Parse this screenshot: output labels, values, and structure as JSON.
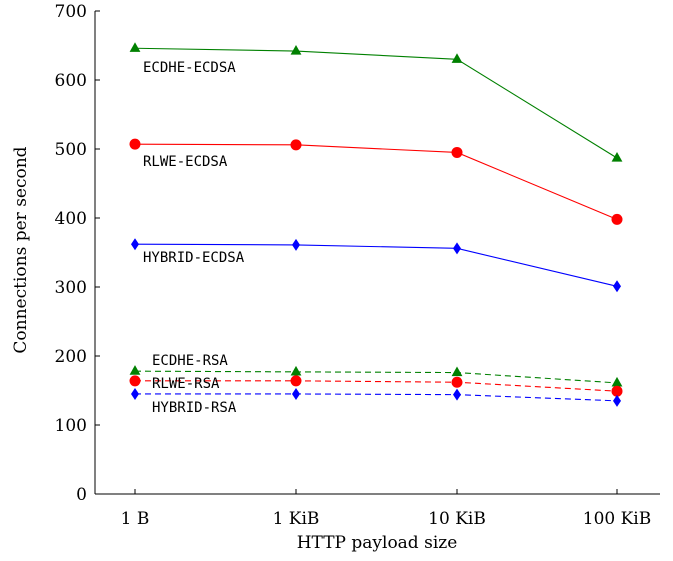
{
  "chart_data": {
    "type": "line",
    "xlabel": "HTTP payload size",
    "ylabel": "Connections per second",
    "categories": [
      "1 B",
      "1 KiB",
      "10 KiB",
      "100 KiB"
    ],
    "ylim": [
      0,
      700
    ],
    "yticks": [
      0,
      100,
      200,
      300,
      400,
      500,
      600,
      700
    ],
    "grid": false,
    "legend": "inline labels next to each series",
    "series": [
      {
        "name": "ECDHE-ECDSA",
        "values": [
          646,
          642,
          630,
          487
        ],
        "color": "#008000",
        "marker": "triangle",
        "dash": "solid"
      },
      {
        "name": "RLWE-ECDSA",
        "values": [
          507,
          506,
          495,
          398
        ],
        "color": "#ff0000",
        "marker": "circle",
        "dash": "solid"
      },
      {
        "name": "HYBRID-ECDSA",
        "values": [
          362,
          361,
          356,
          301
        ],
        "color": "#0000ff",
        "marker": "diamond",
        "dash": "solid"
      },
      {
        "name": "ECDHE-RSA",
        "values": [
          178,
          177,
          176,
          161
        ],
        "color": "#008000",
        "marker": "triangle",
        "dash": "dashed"
      },
      {
        "name": "RLWE-RSA",
        "values": [
          164,
          164,
          162,
          149
        ],
        "color": "#ff0000",
        "marker": "circle",
        "dash": "dashed"
      },
      {
        "name": "HYBRID-RSA",
        "values": [
          145,
          145,
          144,
          135
        ],
        "color": "#0000ff",
        "marker": "diamond",
        "dash": "dashed"
      }
    ]
  }
}
